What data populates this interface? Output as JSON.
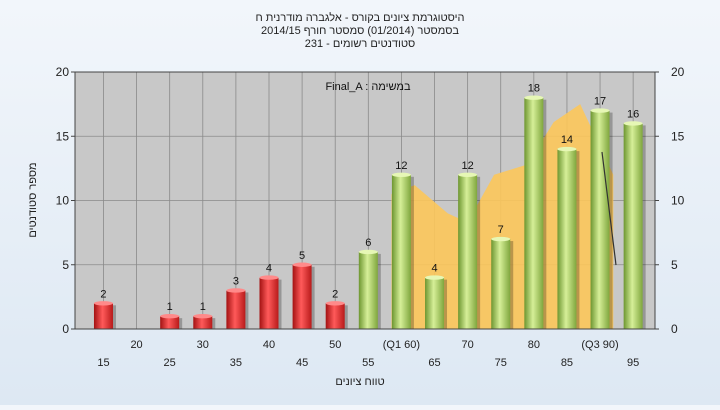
{
  "chart_data": {
    "type": "bar",
    "title_lines": [
      "היסטוגרמת ציונים בקורס - אלגברה מודרנית ח",
      "בסמסטר  (01/2014)  סמסטר חורף 2014/15",
      "231 - סטודנטים רשומים"
    ],
    "annotation": "Final_A : במשימה",
    "ylabel": "מספר סטודנטים",
    "xlabel": "טווח ציונים",
    "ylim": [
      0,
      20
    ],
    "yticks": [
      0,
      5,
      10,
      15,
      20
    ],
    "grid": true,
    "x": [
      15,
      25,
      30,
      35,
      40,
      45,
      50,
      55,
      60,
      65,
      70,
      75,
      80,
      85,
      90,
      95
    ],
    "values": [
      2,
      1,
      1,
      3,
      4,
      5,
      2,
      6,
      12,
      4,
      12,
      7,
      18,
      14,
      17,
      16
    ],
    "value_labels": [
      "2",
      "1",
      "1",
      "3",
      "4",
      "5",
      "2",
      "6",
      "12",
      "4",
      "12",
      "7",
      "18",
      "14",
      "17",
      "16"
    ],
    "bar_colors": [
      "red",
      "red",
      "red",
      "red",
      "red",
      "red",
      "red",
      "green",
      "green",
      "green",
      "green",
      "green",
      "green",
      "green",
      "green",
      "green"
    ],
    "x_tick_labels": [
      {
        "x": 15,
        "label": "15",
        "row": 2
      },
      {
        "x": 20,
        "label": "20",
        "row": 1
      },
      {
        "x": 25,
        "label": "25",
        "row": 2
      },
      {
        "x": 30,
        "label": "30",
        "row": 1
      },
      {
        "x": 35,
        "label": "35",
        "row": 2
      },
      {
        "x": 40,
        "label": "40",
        "row": 1
      },
      {
        "x": 45,
        "label": "45",
        "row": 2
      },
      {
        "x": 50,
        "label": "50",
        "row": 1
      },
      {
        "x": 55,
        "label": "55",
        "row": 2
      },
      {
        "x": 60,
        "label": "(Q1 60)",
        "row": 1
      },
      {
        "x": 65,
        "label": "65",
        "row": 2
      },
      {
        "x": 70,
        "label": "70",
        "row": 1
      },
      {
        "x": 75,
        "label": "75",
        "row": 2
      },
      {
        "x": 80,
        "label": "80",
        "row": 1
      },
      {
        "x": 85,
        "label": "85",
        "row": 2
      },
      {
        "x": 90,
        "label": "(Q3 90)",
        "row": 1
      },
      {
        "x": 95,
        "label": "95",
        "row": 2
      }
    ],
    "area": {
      "x": [
        58.5,
        62,
        67,
        70,
        74,
        79,
        83,
        87,
        92
      ],
      "y": [
        10.5,
        11.2,
        9,
        8.3,
        12,
        12.8,
        16.1,
        17.5,
        12
      ]
    },
    "colors": {
      "red": "#e02828",
      "green": "#a2c85a",
      "area": "#fcc65a",
      "plot_bg": "#c8c8c8",
      "grid": "#8a8a8a"
    }
  }
}
